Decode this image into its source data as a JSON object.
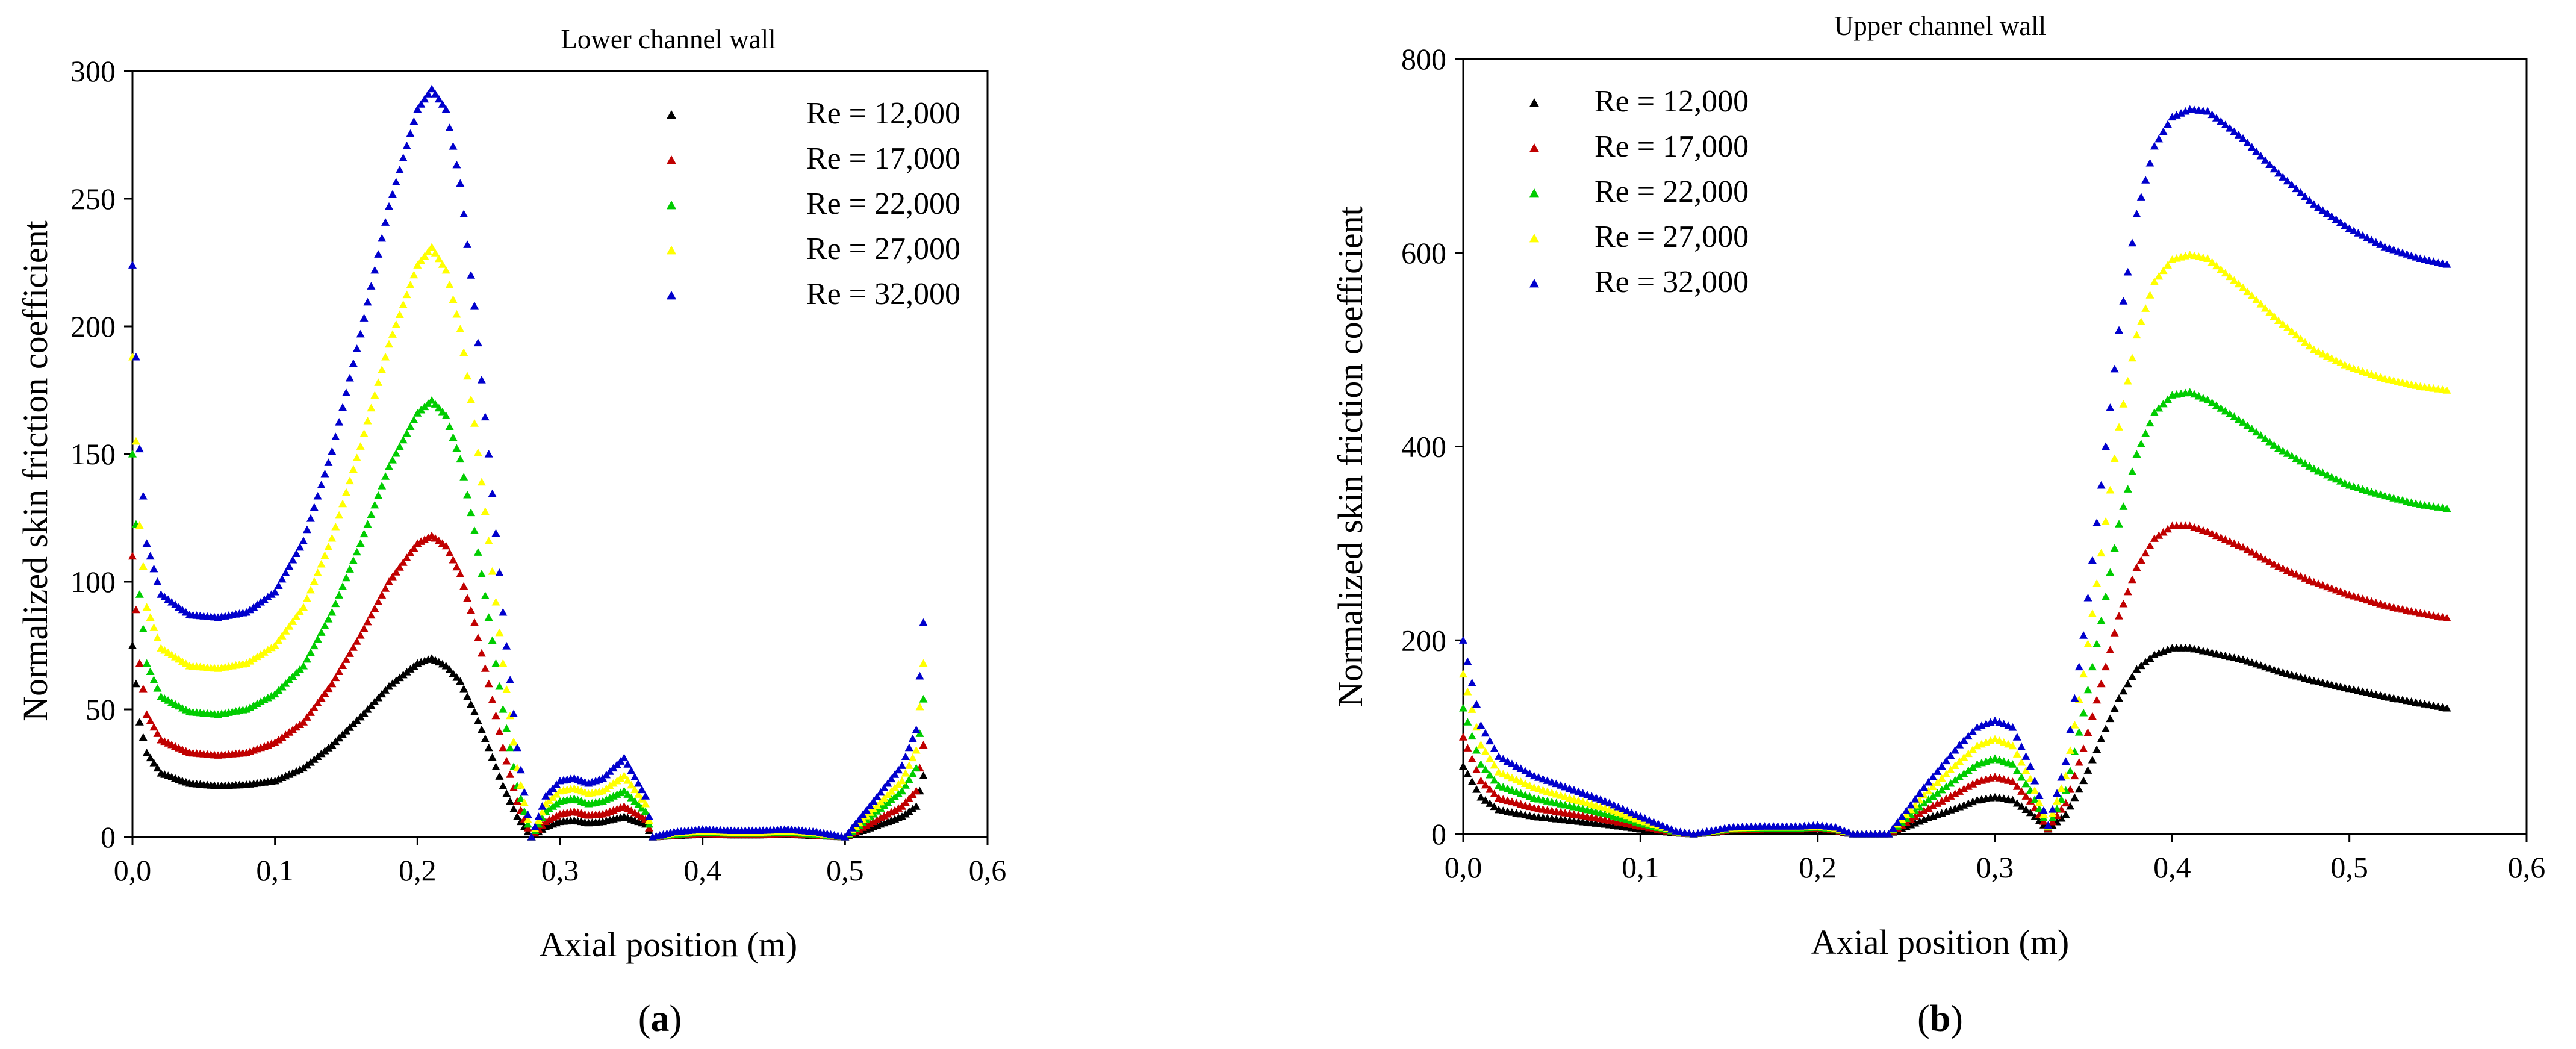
{
  "chart_data": [
    {
      "type": "scatter",
      "panel_label_open": "(",
      "panel_label_letter": "a",
      "panel_label_close": ")",
      "title": "Lower channel wall",
      "xlabel": "Axial position (m)",
      "ylabel": "Normalized skin friction coefficient",
      "xlim": [
        0,
        0.6
      ],
      "ylim": [
        0,
        300
      ],
      "x_ticks": [
        "0,0",
        "0,1",
        "0,2",
        "0,3",
        "0,4",
        "0,5",
        "0,6"
      ],
      "x_tick_values": [
        0,
        0.1,
        0.2,
        0.3,
        0.4,
        0.5,
        0.6
      ],
      "y_ticks": [
        "0",
        "50",
        "100",
        "150",
        "200",
        "250",
        "300"
      ],
      "y_tick_values": [
        0,
        50,
        100,
        150,
        200,
        250,
        300
      ],
      "legend_position": "top-right",
      "marker": "triangle",
      "series": [
        {
          "name": "Re = 12,000",
          "color": "#000000",
          "x": [
            0.0,
            0.005,
            0.01,
            0.02,
            0.04,
            0.06,
            0.08,
            0.1,
            0.12,
            0.14,
            0.16,
            0.18,
            0.2,
            0.21,
            0.22,
            0.23,
            0.24,
            0.25,
            0.26,
            0.27,
            0.28,
            0.29,
            0.3,
            0.31,
            0.32,
            0.33,
            0.345,
            0.36,
            0.365,
            0.38,
            0.4,
            0.42,
            0.44,
            0.46,
            0.48,
            0.5,
            0.52,
            0.54,
            0.55,
            0.555
          ],
          "y": [
            75,
            45,
            33,
            25,
            21,
            20,
            20.5,
            22,
            27,
            36,
            47,
            59,
            68,
            70,
            67,
            61,
            49,
            35,
            20,
            8,
            0,
            4,
            6,
            6.5,
            5.5,
            6,
            8,
            5,
            0,
            0.5,
            1,
            0.8,
            0.8,
            1,
            0.5,
            0,
            4,
            8,
            12,
            24
          ]
        },
        {
          "name": "Re = 17,000",
          "color": "#c00000",
          "x": [
            0.0,
            0.005,
            0.01,
            0.02,
            0.04,
            0.06,
            0.08,
            0.1,
            0.12,
            0.14,
            0.16,
            0.18,
            0.2,
            0.21,
            0.22,
            0.23,
            0.24,
            0.25,
            0.26,
            0.27,
            0.28,
            0.29,
            0.3,
            0.31,
            0.32,
            0.33,
            0.345,
            0.36,
            0.365,
            0.38,
            0.4,
            0.42,
            0.44,
            0.46,
            0.48,
            0.5,
            0.52,
            0.54,
            0.55,
            0.555
          ],
          "y": [
            110,
            68,
            48,
            38,
            33,
            32,
            33,
            37,
            45,
            60,
            79,
            100,
            115,
            118,
            114,
            103,
            84,
            60,
            35,
            14,
            0,
            6,
            9,
            10,
            8.5,
            9,
            12,
            7,
            0,
            0.7,
            1.3,
            1,
            1,
            1.3,
            0.7,
            0,
            6,
            12,
            18,
            36
          ]
        },
        {
          "name": "Re = 22,000",
          "color": "#00cc00",
          "x": [
            0.0,
            0.005,
            0.01,
            0.02,
            0.04,
            0.06,
            0.08,
            0.1,
            0.12,
            0.14,
            0.16,
            0.18,
            0.2,
            0.21,
            0.22,
            0.23,
            0.24,
            0.25,
            0.26,
            0.27,
            0.28,
            0.29,
            0.3,
            0.31,
            0.32,
            0.33,
            0.345,
            0.36,
            0.365,
            0.38,
            0.4,
            0.42,
            0.44,
            0.46,
            0.48,
            0.5,
            0.52,
            0.54,
            0.55,
            0.555
          ],
          "y": [
            150,
            95,
            68,
            55,
            49,
            48,
            50,
            56,
            67,
            88,
            115,
            145,
            166,
            171,
            165,
            148,
            120,
            86,
            50,
            20,
            0,
            10,
            14,
            15,
            13,
            14,
            18,
            10,
            0,
            1,
            1.8,
            1.4,
            1.4,
            1.8,
            1,
            0,
            9,
            18,
            27,
            54
          ]
        },
        {
          "name": "Re = 27,000",
          "color": "#ffff00",
          "x": [
            0.0,
            0.005,
            0.01,
            0.02,
            0.04,
            0.06,
            0.08,
            0.1,
            0.12,
            0.14,
            0.16,
            0.18,
            0.2,
            0.21,
            0.22,
            0.23,
            0.24,
            0.25,
            0.26,
            0.27,
            0.28,
            0.29,
            0.3,
            0.31,
            0.32,
            0.33,
            0.345,
            0.36,
            0.365,
            0.38,
            0.4,
            0.42,
            0.44,
            0.46,
            0.48,
            0.5,
            0.52,
            0.54,
            0.55,
            0.555
          ],
          "y": [
            188,
            122,
            90,
            74,
            67,
            66,
            68,
            75,
            90,
            117,
            153,
            193,
            224,
            231,
            222,
            199,
            162,
            116,
            68,
            27,
            0,
            13,
            18,
            19,
            17,
            18,
            24,
            13,
            0,
            1.5,
            2.3,
            1.8,
            1.8,
            2.3,
            1.5,
            0,
            11,
            22,
            34,
            68
          ]
        },
        {
          "name": "Re = 32,000",
          "color": "#0000cc",
          "x": [
            0.0,
            0.005,
            0.01,
            0.02,
            0.04,
            0.06,
            0.08,
            0.1,
            0.12,
            0.14,
            0.16,
            0.18,
            0.2,
            0.21,
            0.22,
            0.23,
            0.24,
            0.25,
            0.26,
            0.27,
            0.28,
            0.29,
            0.3,
            0.31,
            0.32,
            0.33,
            0.345,
            0.36,
            0.365,
            0.38,
            0.4,
            0.42,
            0.44,
            0.46,
            0.48,
            0.5,
            0.52,
            0.54,
            0.55,
            0.555
          ],
          "y": [
            224,
            152,
            115,
            95,
            87,
            86,
            88,
            96,
            116,
            151,
            197,
            247,
            285,
            293,
            285,
            256,
            208,
            150,
            88,
            35,
            0,
            16,
            22,
            23,
            21,
            23,
            31,
            16,
            0,
            2,
            3,
            2.5,
            2.5,
            3,
            2,
            0,
            14,
            28,
            42,
            84
          ]
        }
      ]
    },
    {
      "type": "scatter",
      "panel_label_open": "(",
      "panel_label_letter": "b",
      "panel_label_close": ")",
      "title": "Upper channel wall",
      "xlabel": "Axial position (m)",
      "ylabel": "Normalized skin friction coefficient",
      "xlim": [
        0,
        0.6
      ],
      "ylim": [
        0,
        800
      ],
      "x_ticks": [
        "0,0",
        "0,1",
        "0,2",
        "0,3",
        "0,4",
        "0,5",
        "0,6"
      ],
      "x_tick_values": [
        0,
        0.1,
        0.2,
        0.3,
        0.4,
        0.5,
        0.6
      ],
      "y_ticks": [
        "0",
        "200",
        "400",
        "600",
        "800"
      ],
      "y_tick_values": [
        0,
        200,
        400,
        600,
        800
      ],
      "legend_position": "top-left",
      "marker": "triangle",
      "series": [
        {
          "name": "Re = 12,000",
          "color": "#000000",
          "x": [
            0.0,
            0.01,
            0.02,
            0.04,
            0.06,
            0.08,
            0.1,
            0.12,
            0.13,
            0.15,
            0.17,
            0.19,
            0.2,
            0.21,
            0.22,
            0.24,
            0.26,
            0.28,
            0.29,
            0.3,
            0.31,
            0.32,
            0.33,
            0.34,
            0.35,
            0.36,
            0.37,
            0.38,
            0.39,
            0.4,
            0.41,
            0.42,
            0.44,
            0.46,
            0.48,
            0.5,
            0.52,
            0.54,
            0.555
          ],
          "y": [
            70,
            38,
            25,
            18,
            14,
            10,
            5,
            1,
            0,
            3,
            4,
            4,
            5,
            3,
            0,
            0,
            15,
            28,
            35,
            38,
            35,
            22,
            5,
            20,
            55,
            98,
            140,
            170,
            185,
            192,
            192,
            188,
            180,
            168,
            158,
            150,
            142,
            135,
            130
          ]
        },
        {
          "name": "Re = 17,000",
          "color": "#c00000",
          "x": [
            0.0,
            0.01,
            0.02,
            0.04,
            0.06,
            0.08,
            0.1,
            0.12,
            0.13,
            0.15,
            0.17,
            0.19,
            0.2,
            0.21,
            0.22,
            0.24,
            0.26,
            0.28,
            0.29,
            0.3,
            0.31,
            0.32,
            0.33,
            0.34,
            0.35,
            0.36,
            0.37,
            0.38,
            0.39,
            0.4,
            0.41,
            0.42,
            0.44,
            0.46,
            0.48,
            0.5,
            0.52,
            0.54,
            0.555
          ],
          "y": [
            100,
            55,
            37,
            27,
            21,
            15,
            8,
            1.5,
            0,
            4,
            5,
            5,
            6,
            4,
            0,
            0,
            24,
            44,
            54,
            59,
            54,
            34,
            6,
            32,
            88,
            155,
            225,
            275,
            305,
            318,
            318,
            312,
            296,
            276,
            260,
            247,
            236,
            228,
            223
          ]
        },
        {
          "name": "Re = 22,000",
          "color": "#00cc00",
          "x": [
            0.0,
            0.01,
            0.02,
            0.04,
            0.06,
            0.08,
            0.1,
            0.12,
            0.13,
            0.15,
            0.17,
            0.19,
            0.2,
            0.21,
            0.22,
            0.24,
            0.26,
            0.28,
            0.29,
            0.3,
            0.31,
            0.32,
            0.33,
            0.34,
            0.35,
            0.36,
            0.37,
            0.38,
            0.39,
            0.4,
            0.41,
            0.42,
            0.44,
            0.46,
            0.48,
            0.5,
            0.52,
            0.54,
            0.555
          ],
          "y": [
            130,
            72,
            50,
            37,
            29,
            21,
            11,
            2,
            0,
            5,
            6,
            6,
            7,
            5,
            0,
            0,
            32,
            59,
            72,
            78,
            72,
            45,
            7,
            45,
            125,
            220,
            320,
            392,
            435,
            453,
            456,
            448,
            425,
            398,
            377,
            360,
            349,
            340,
            336
          ]
        },
        {
          "name": "Re = 27,000",
          "color": "#ffff00",
          "x": [
            0.0,
            0.01,
            0.02,
            0.04,
            0.06,
            0.08,
            0.1,
            0.12,
            0.13,
            0.15,
            0.17,
            0.19,
            0.2,
            0.21,
            0.22,
            0.24,
            0.26,
            0.28,
            0.29,
            0.3,
            0.31,
            0.32,
            0.33,
            0.34,
            0.35,
            0.36,
            0.37,
            0.38,
            0.39,
            0.4,
            0.41,
            0.42,
            0.44,
            0.46,
            0.48,
            0.5,
            0.52,
            0.54,
            0.555
          ],
          "y": [
            165,
            92,
            64,
            48,
            37,
            27,
            14,
            2.5,
            0,
            6,
            7,
            7,
            8,
            6,
            0,
            0,
            40,
            75,
            91,
            98,
            91,
            57,
            8,
            60,
            165,
            290,
            420,
            515,
            570,
            593,
            598,
            594,
            564,
            530,
            500,
            482,
            470,
            462,
            458
          ]
        },
        {
          "name": "Re = 32,000",
          "color": "#0000cc",
          "x": [
            0.0,
            0.01,
            0.02,
            0.04,
            0.06,
            0.08,
            0.1,
            0.12,
            0.13,
            0.15,
            0.17,
            0.19,
            0.2,
            0.21,
            0.22,
            0.24,
            0.26,
            0.28,
            0.29,
            0.3,
            0.31,
            0.32,
            0.33,
            0.34,
            0.35,
            0.36,
            0.37,
            0.38,
            0.39,
            0.4,
            0.41,
            0.42,
            0.44,
            0.46,
            0.48,
            0.5,
            0.52,
            0.54,
            0.555
          ],
          "y": [
            200,
            112,
            80,
            60,
            47,
            34,
            18,
            3,
            0,
            7,
            8,
            8,
            9,
            7,
            0,
            0,
            48,
            92,
            110,
            117,
            110,
            70,
            9,
            75,
            205,
            360,
            520,
            640,
            710,
            740,
            748,
            746,
            718,
            682,
            650,
            625,
            606,
            594,
            588
          ]
        }
      ]
    }
  ]
}
